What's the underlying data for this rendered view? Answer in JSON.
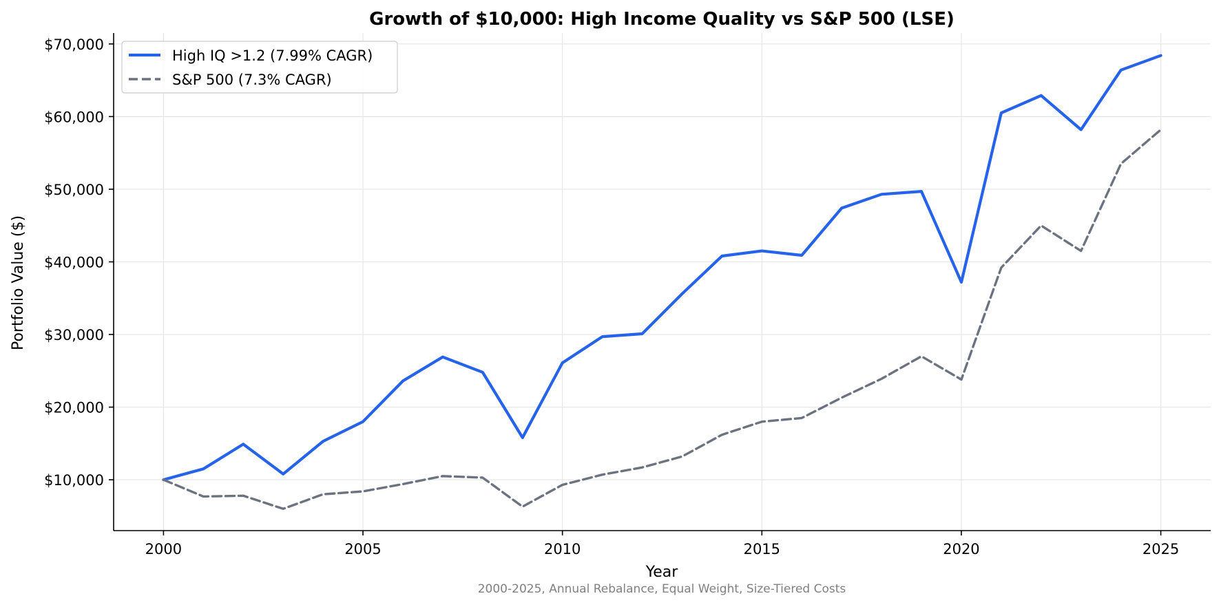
{
  "chart_data": {
    "type": "line",
    "title": "Growth of $10,000: High Income Quality vs S&P 500 (LSE)",
    "xlabel": "Year",
    "ylabel": "Portfolio Value ($)",
    "footnote": "2000-2025, Annual Rebalance, Equal Weight, Size-Tiered Costs",
    "x": [
      2000,
      2001,
      2002,
      2003,
      2004,
      2005,
      2006,
      2007,
      2008,
      2009,
      2010,
      2011,
      2012,
      2013,
      2014,
      2015,
      2016,
      2017,
      2018,
      2019,
      2020,
      2021,
      2022,
      2023,
      2024,
      2025
    ],
    "xlim": [
      1998.75,
      2026.25
    ],
    "ylim": [
      3000,
      71500
    ],
    "xticks": [
      2000,
      2005,
      2010,
      2015,
      2020,
      2025
    ],
    "xtick_labels": [
      "2000",
      "2005",
      "2010",
      "2015",
      "2020",
      "2025"
    ],
    "yticks": [
      10000,
      20000,
      30000,
      40000,
      50000,
      60000,
      70000
    ],
    "ytick_labels": [
      "$10,000",
      "$20,000",
      "$30,000",
      "$40,000",
      "$50,000",
      "$60,000",
      "$70,000"
    ],
    "grid": true,
    "legend_position": "top-left",
    "series": [
      {
        "name": "High IQ >1.2 (7.99% CAGR)",
        "color": "#2563eb",
        "style": "solid",
        "values": [
          10000,
          11500,
          14900,
          10800,
          15300,
          18000,
          23600,
          26900,
          24800,
          15800,
          26100,
          29700,
          30100,
          35600,
          40800,
          41500,
          40900,
          47400,
          49300,
          49700,
          37200,
          60500,
          62900,
          58200,
          66400,
          68400
        ]
      },
      {
        "name": "S&P 500 (7.3% CAGR)",
        "color": "#6b7280",
        "style": "dashed",
        "values": [
          10000,
          7700,
          7800,
          6000,
          8000,
          8400,
          9400,
          10500,
          10300,
          6300,
          9300,
          10700,
          11700,
          13200,
          16200,
          18000,
          18500,
          21300,
          23900,
          27000,
          23800,
          39200,
          45000,
          41500,
          53500,
          58200
        ]
      }
    ]
  }
}
